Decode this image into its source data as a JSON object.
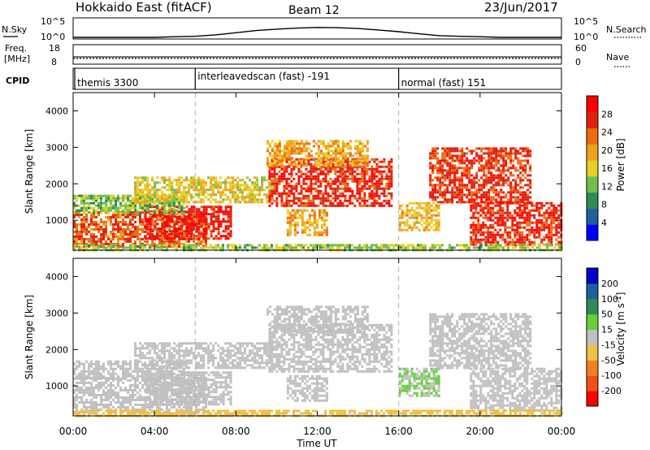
{
  "header": {
    "station": "Hokkaido East (fitACF)",
    "beam": "Beam 12",
    "date": "23/Jun/2017"
  },
  "noise_panel": {
    "left_label": "N.Sky",
    "right_label": "N.Search",
    "left_ticks": [
      "10^5",
      "10^0"
    ],
    "right_ticks": [
      "10^5",
      "10^0"
    ]
  },
  "freq_panel": {
    "left_label_top": "Freq.",
    "left_label_bottom": "[MHz]",
    "right_label": "Nave",
    "left_ticks": [
      "18",
      "8"
    ],
    "right_ticks": [
      "60",
      "0"
    ]
  },
  "cpid_panel": {
    "label": "CPID",
    "programs": [
      {
        "name": "themis 3300",
        "start_hour": 0,
        "end_hour": 6
      },
      {
        "name": "interleavedscan (fast) -191",
        "start_hour": 6,
        "end_hour": 16
      },
      {
        "name": "normal (fast) 151",
        "start_hour": 16,
        "end_hour": 24
      }
    ]
  },
  "x_axis": {
    "label": "Time UT",
    "range_hours": [
      0,
      24
    ],
    "tick_hours": [
      0,
      4,
      8,
      12,
      16,
      20,
      24
    ],
    "tick_labels": [
      "00:00",
      "04:00",
      "08:00",
      "12:00",
      "16:00",
      "20:00",
      "00:00"
    ]
  },
  "colors": {
    "power": [
      "#0000ff",
      "#1f5fa0",
      "#2e8b57",
      "#6fbf4f",
      "#e8d020",
      "#f0a020",
      "#f06a10",
      "#e02010",
      "#ff0000"
    ],
    "velocity": [
      "#ff0000",
      "#f05010",
      "#f08020",
      "#f0c040",
      "#c0c0c0",
      "#6acd3c",
      "#2e8b57",
      "#1f5fa0",
      "#0000cc"
    ]
  },
  "chart_data": [
    {
      "type": "line",
      "panel": "noise",
      "y_scale": "log",
      "ylim": [
        1,
        100000
      ],
      "series": [
        {
          "x": [
            0,
            1,
            2,
            3,
            4,
            5,
            6,
            7,
            8,
            9,
            10,
            11,
            12,
            13,
            14,
            15,
            16,
            17,
            18,
            19,
            20,
            21,
            22,
            23,
            24
          ],
          "values": [
            1,
            1,
            1,
            1,
            1,
            1.5,
            2,
            5,
            20,
            80,
            200,
            400,
            600,
            500,
            300,
            120,
            40,
            10,
            3,
            2,
            1.5,
            1,
            1,
            1,
            1
          ]
        }
      ]
    },
    {
      "type": "line",
      "panel": "frequency",
      "ylim": [
        8,
        18
      ],
      "series": [
        {
          "x": [
            0,
            24
          ],
          "values": [
            10.8,
            10.8
          ]
        },
        {
          "x": [
            0,
            24
          ],
          "values": [
            11.6,
            11.6
          ]
        }
      ]
    },
    {
      "type": "heatmap",
      "panel": "power",
      "title": "",
      "xlabel": "Time UT",
      "ylabel": "Slant Range [km]",
      "ylim": [
        180,
        4500
      ],
      "yticks": [
        1000,
        2000,
        3000,
        4000
      ],
      "colorbar": {
        "label": "Power [dB]",
        "ticks": [
          4,
          8,
          12,
          16,
          20,
          24,
          28
        ],
        "range": [
          0,
          32
        ]
      },
      "regions": [
        {
          "t0": 0.0,
          "t1": 6.5,
          "r0": 300,
          "r1": 1250,
          "value": 24
        },
        {
          "t0": 3.5,
          "t1": 7.8,
          "r0": 500,
          "r1": 1400,
          "value": 28
        },
        {
          "t0": 0.0,
          "t1": 5.5,
          "r0": 1200,
          "r1": 1700,
          "value": 13
        },
        {
          "t0": 3.0,
          "t1": 9.8,
          "r0": 1500,
          "r1": 2200,
          "value": 17
        },
        {
          "t0": 9.6,
          "t1": 15.7,
          "r0": 1400,
          "r1": 2700,
          "value": 27
        },
        {
          "t0": 9.5,
          "t1": 14.5,
          "r0": 2500,
          "r1": 3200,
          "value": 19
        },
        {
          "t0": 10.5,
          "t1": 12.5,
          "r0": 600,
          "r1": 1300,
          "value": 20
        },
        {
          "t0": 16.0,
          "t1": 18.0,
          "r0": 700,
          "r1": 1500,
          "value": 18
        },
        {
          "t0": 17.5,
          "t1": 22.5,
          "r0": 1500,
          "r1": 3000,
          "value": 26
        },
        {
          "t0": 19.5,
          "t1": 24.0,
          "r0": 300,
          "r1": 1500,
          "value": 27
        },
        {
          "t0": 0.0,
          "t1": 24.0,
          "r0": 180,
          "r1": 350,
          "value": 14
        }
      ]
    },
    {
      "type": "heatmap",
      "panel": "velocity",
      "title": "",
      "xlabel": "Time UT",
      "ylabel": "Slant Range [km]",
      "ylim": [
        180,
        4500
      ],
      "yticks": [
        1000,
        2000,
        3000,
        4000
      ],
      "colorbar": {
        "label": "Velocity [m s^-1]",
        "ticks": [
          -200,
          -100,
          -50,
          -15,
          15,
          50,
          100,
          200
        ],
        "range": [
          -250,
          250
        ]
      },
      "regions": [
        {
          "t0": 0.0,
          "t1": 6.5,
          "r0": 300,
          "r1": 1250,
          "value": 0
        },
        {
          "t0": 3.5,
          "t1": 7.8,
          "r0": 500,
          "r1": 1400,
          "value": 0
        },
        {
          "t0": 0.0,
          "t1": 5.5,
          "r0": 1200,
          "r1": 1700,
          "value": 0
        },
        {
          "t0": 3.0,
          "t1": 9.8,
          "r0": 1500,
          "r1": 2200,
          "value": 0
        },
        {
          "t0": 9.6,
          "t1": 15.7,
          "r0": 1400,
          "r1": 2700,
          "value": 0
        },
        {
          "t0": 9.5,
          "t1": 14.5,
          "r0": 2500,
          "r1": 3200,
          "value": 0
        },
        {
          "t0": 10.5,
          "t1": 12.5,
          "r0": 600,
          "r1": 1300,
          "value": 0
        },
        {
          "t0": 16.0,
          "t1": 18.0,
          "r0": 700,
          "r1": 1500,
          "value": 30
        },
        {
          "t0": 17.5,
          "t1": 22.5,
          "r0": 1500,
          "r1": 3000,
          "value": 0
        },
        {
          "t0": 19.5,
          "t1": 24.0,
          "r0": 300,
          "r1": 1500,
          "value": 0
        },
        {
          "t0": 0.0,
          "t1": 24.0,
          "r0": 180,
          "r1": 350,
          "value": -40
        }
      ]
    }
  ]
}
